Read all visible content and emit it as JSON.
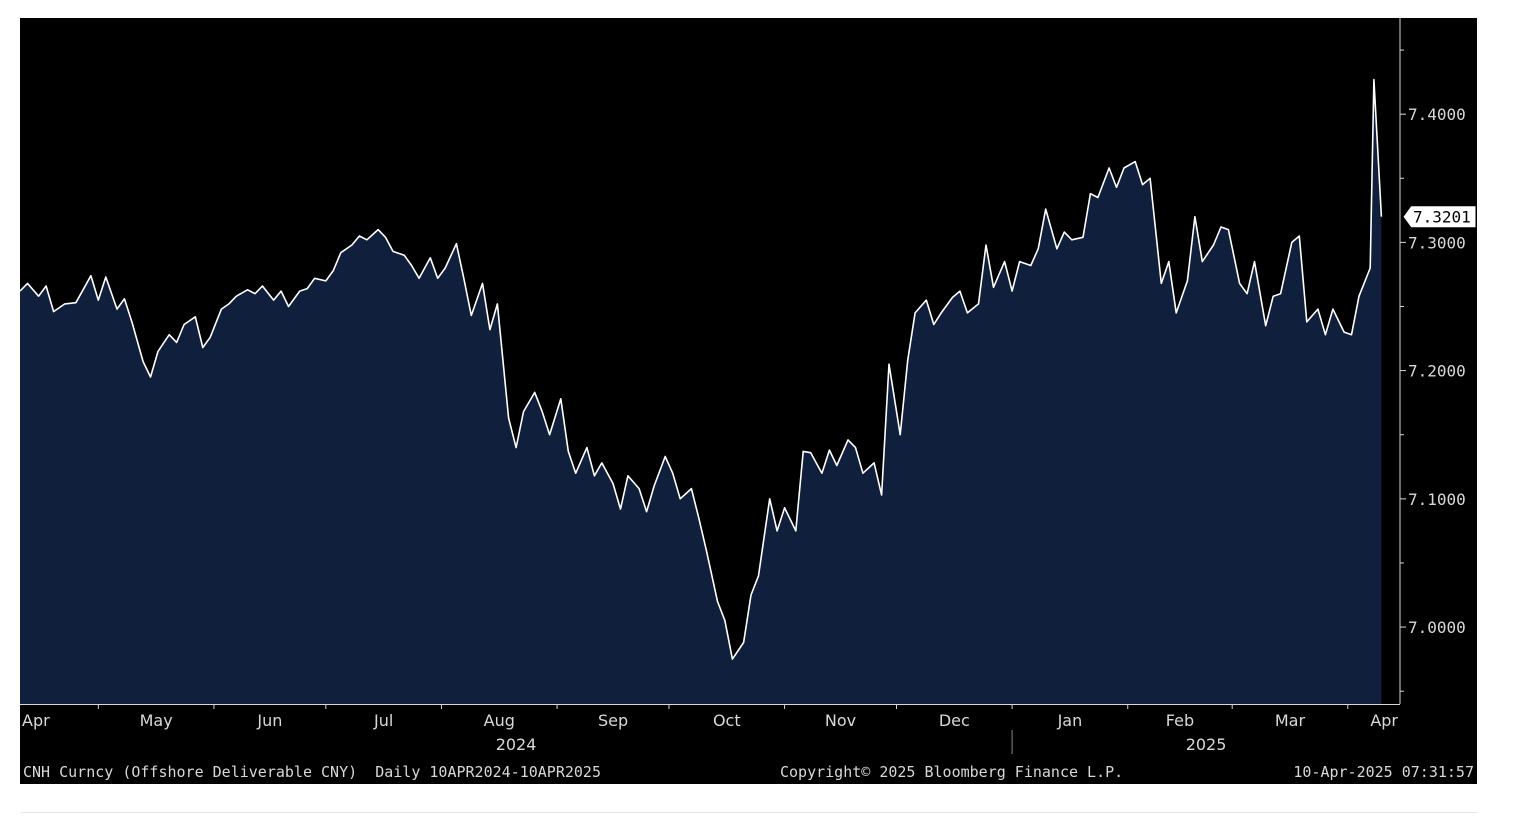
{
  "chart_data": {
    "type": "area",
    "x_tick_labels": [
      "Apr",
      "May",
      "Jun",
      "Jul",
      "Aug",
      "Sep",
      "Oct",
      "Nov",
      "Dec",
      "Jan",
      "Feb",
      "Mar",
      "Apr"
    ],
    "year_labels": [
      "2024",
      "2025"
    ],
    "y_tick_labels": [
      "7.4000",
      "7.3000",
      "7.2000",
      "7.1000",
      "7.0000"
    ],
    "ylim": [
      6.94,
      7.475
    ],
    "xlim": [
      "2024-04-10",
      "2025-04-15"
    ],
    "last_value_label": "7.3201",
    "grid": false,
    "legend": "none",
    "series": [
      {
        "points": [
          [
            "2024-04-10",
            7.262
          ],
          [
            "2024-04-12",
            7.268
          ],
          [
            "2024-04-15",
            7.258
          ],
          [
            "2024-04-17",
            7.266
          ],
          [
            "2024-04-19",
            7.246
          ],
          [
            "2024-04-22",
            7.252
          ],
          [
            "2024-04-25",
            7.253
          ],
          [
            "2024-04-29",
            7.274
          ],
          [
            "2024-05-01",
            7.255
          ],
          [
            "2024-05-03",
            7.273
          ],
          [
            "2024-05-06",
            7.248
          ],
          [
            "2024-05-08",
            7.256
          ],
          [
            "2024-05-10",
            7.238
          ],
          [
            "2024-05-13",
            7.207
          ],
          [
            "2024-05-15",
            7.195
          ],
          [
            "2024-05-17",
            7.215
          ],
          [
            "2024-05-20",
            7.228
          ],
          [
            "2024-05-22",
            7.222
          ],
          [
            "2024-05-24",
            7.236
          ],
          [
            "2024-05-27",
            7.242
          ],
          [
            "2024-05-29",
            7.218
          ],
          [
            "2024-05-31",
            7.226
          ],
          [
            "2024-06-03",
            7.248
          ],
          [
            "2024-06-05",
            7.252
          ],
          [
            "2024-06-07",
            7.258
          ],
          [
            "2024-06-10",
            7.263
          ],
          [
            "2024-06-12",
            7.26
          ],
          [
            "2024-06-14",
            7.266
          ],
          [
            "2024-06-17",
            7.255
          ],
          [
            "2024-06-19",
            7.262
          ],
          [
            "2024-06-21",
            7.25
          ],
          [
            "2024-06-24",
            7.262
          ],
          [
            "2024-06-26",
            7.264
          ],
          [
            "2024-06-28",
            7.272
          ],
          [
            "2024-07-01",
            7.27
          ],
          [
            "2024-07-03",
            7.278
          ],
          [
            "2024-07-05",
            7.292
          ],
          [
            "2024-07-08",
            7.298
          ],
          [
            "2024-07-10",
            7.305
          ],
          [
            "2024-07-12",
            7.302
          ],
          [
            "2024-07-15",
            7.31
          ],
          [
            "2024-07-17",
            7.304
          ],
          [
            "2024-07-19",
            7.293
          ],
          [
            "2024-07-22",
            7.29
          ],
          [
            "2024-07-24",
            7.282
          ],
          [
            "2024-07-26",
            7.272
          ],
          [
            "2024-07-29",
            7.288
          ],
          [
            "2024-07-31",
            7.272
          ],
          [
            "2024-08-02",
            7.28
          ],
          [
            "2024-08-05",
            7.299
          ],
          [
            "2024-08-07",
            7.272
          ],
          [
            "2024-08-09",
            7.243
          ],
          [
            "2024-08-12",
            7.268
          ],
          [
            "2024-08-14",
            7.232
          ],
          [
            "2024-08-16",
            7.252
          ],
          [
            "2024-08-19",
            7.163
          ],
          [
            "2024-08-21",
            7.14
          ],
          [
            "2024-08-23",
            7.168
          ],
          [
            "2024-08-26",
            7.183
          ],
          [
            "2024-08-28",
            7.168
          ],
          [
            "2024-08-30",
            7.15
          ],
          [
            "2024-09-02",
            7.178
          ],
          [
            "2024-09-04",
            7.137
          ],
          [
            "2024-09-06",
            7.12
          ],
          [
            "2024-09-09",
            7.14
          ],
          [
            "2024-09-11",
            7.118
          ],
          [
            "2024-09-13",
            7.128
          ],
          [
            "2024-09-16",
            7.112
          ],
          [
            "2024-09-18",
            7.092
          ],
          [
            "2024-09-20",
            7.118
          ],
          [
            "2024-09-23",
            7.108
          ],
          [
            "2024-09-25",
            7.09
          ],
          [
            "2024-09-27",
            7.11
          ],
          [
            "2024-09-30",
            7.133
          ],
          [
            "2024-10-02",
            7.12
          ],
          [
            "2024-10-04",
            7.1
          ],
          [
            "2024-10-07",
            7.108
          ],
          [
            "2024-10-09",
            7.085
          ],
          [
            "2024-10-11",
            7.06
          ],
          [
            "2024-10-14",
            7.02
          ],
          [
            "2024-10-16",
            7.005
          ],
          [
            "2024-10-18",
            6.975
          ],
          [
            "2024-10-21",
            6.988
          ],
          [
            "2024-10-23",
            7.025
          ],
          [
            "2024-10-25",
            7.04
          ],
          [
            "2024-10-28",
            7.1
          ],
          [
            "2024-10-30",
            7.075
          ],
          [
            "2024-11-01",
            7.093
          ],
          [
            "2024-11-04",
            7.075
          ],
          [
            "2024-11-06",
            7.137
          ],
          [
            "2024-11-08",
            7.136
          ],
          [
            "2024-11-11",
            7.12
          ],
          [
            "2024-11-13",
            7.138
          ],
          [
            "2024-11-15",
            7.126
          ],
          [
            "2024-11-18",
            7.146
          ],
          [
            "2024-11-20",
            7.14
          ],
          [
            "2024-11-22",
            7.12
          ],
          [
            "2024-11-25",
            7.128
          ],
          [
            "2024-11-27",
            7.103
          ],
          [
            "2024-11-29",
            7.205
          ],
          [
            "2024-12-02",
            7.15
          ],
          [
            "2024-12-04",
            7.208
          ],
          [
            "2024-12-06",
            7.245
          ],
          [
            "2024-12-09",
            7.255
          ],
          [
            "2024-12-11",
            7.236
          ],
          [
            "2024-12-13",
            7.245
          ],
          [
            "2024-12-16",
            7.257
          ],
          [
            "2024-12-18",
            7.262
          ],
          [
            "2024-12-20",
            7.245
          ],
          [
            "2024-12-23",
            7.252
          ],
          [
            "2024-12-25",
            7.298
          ],
          [
            "2024-12-27",
            7.265
          ],
          [
            "2024-12-30",
            7.285
          ],
          [
            "2025-01-01",
            7.262
          ],
          [
            "2025-01-03",
            7.285
          ],
          [
            "2025-01-06",
            7.282
          ],
          [
            "2025-01-08",
            7.295
          ],
          [
            "2025-01-10",
            7.326
          ],
          [
            "2025-01-13",
            7.295
          ],
          [
            "2025-01-15",
            7.308
          ],
          [
            "2025-01-17",
            7.302
          ],
          [
            "2025-01-20",
            7.304
          ],
          [
            "2025-01-22",
            7.338
          ],
          [
            "2025-01-24",
            7.335
          ],
          [
            "2025-01-27",
            7.358
          ],
          [
            "2025-01-29",
            7.343
          ],
          [
            "2025-01-31",
            7.358
          ],
          [
            "2025-02-03",
            7.363
          ],
          [
            "2025-02-05",
            7.345
          ],
          [
            "2025-02-07",
            7.35
          ],
          [
            "2025-02-10",
            7.268
          ],
          [
            "2025-02-12",
            7.285
          ],
          [
            "2025-02-14",
            7.245
          ],
          [
            "2025-02-17",
            7.27
          ],
          [
            "2025-02-19",
            7.32
          ],
          [
            "2025-02-21",
            7.285
          ],
          [
            "2025-02-24",
            7.298
          ],
          [
            "2025-02-26",
            7.312
          ],
          [
            "2025-02-28",
            7.31
          ],
          [
            "2025-03-03",
            7.268
          ],
          [
            "2025-03-05",
            7.26
          ],
          [
            "2025-03-07",
            7.285
          ],
          [
            "2025-03-10",
            7.235
          ],
          [
            "2025-03-12",
            7.258
          ],
          [
            "2025-03-14",
            7.26
          ],
          [
            "2025-03-17",
            7.3
          ],
          [
            "2025-03-19",
            7.305
          ],
          [
            "2025-03-21",
            7.238
          ],
          [
            "2025-03-24",
            7.248
          ],
          [
            "2025-03-26",
            7.228
          ],
          [
            "2025-03-28",
            7.248
          ],
          [
            "2025-03-31",
            7.23
          ],
          [
            "2025-04-02",
            7.228
          ],
          [
            "2025-04-04",
            7.258
          ],
          [
            "2025-04-07",
            7.28
          ],
          [
            "2025-04-08",
            7.427
          ],
          [
            "2025-04-10",
            7.32
          ]
        ]
      }
    ]
  },
  "footer": {
    "security": "CNH Curncy (Offshore Deliverable CNY)  Daily 10APR2024-10APR2025",
    "copyright": "Copyright© 2025 Bloomberg Finance L.P.",
    "timestamp": "10-Apr-2025 07:31:57"
  },
  "colors": {
    "background": "#000000",
    "area_fill": "#0f1f3c",
    "line": "#ffffff",
    "axis": "#d8d8d8"
  }
}
